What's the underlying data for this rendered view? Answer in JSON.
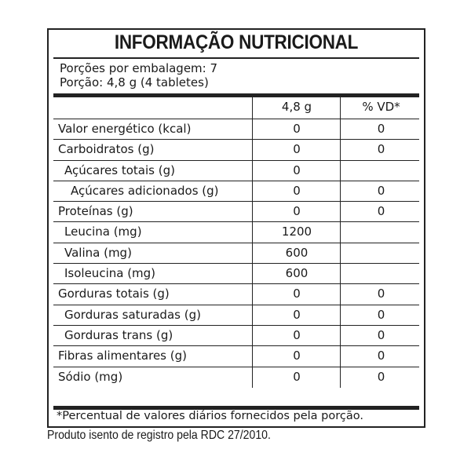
{
  "title": "INFORMAÇÃO NUTRICIONAL",
  "servings_per_package": "Porções por embalagem: 7",
  "serving_size": "Porção: 4,8 g (4 tabletes)",
  "columns": [
    "",
    "4,8 g",
    "% VD*"
  ],
  "rows": [
    {
      "label": "Valor energético (kcal)",
      "indent": 0,
      "amount": "0",
      "dv": "0"
    },
    {
      "label": "Carboidratos (g)",
      "indent": 0,
      "amount": "0",
      "dv": "0"
    },
    {
      "label": "Açúcares totais (g)",
      "indent": 1,
      "amount": "0",
      "dv": ""
    },
    {
      "label": "Açúcares adicionados (g)",
      "indent": 2,
      "amount": "0",
      "dv": "0"
    },
    {
      "label": "Proteínas (g)",
      "indent": 0,
      "amount": "0",
      "dv": "0"
    },
    {
      "label": "Leucina (mg)",
      "indent": 1,
      "amount": "1200",
      "dv": ""
    },
    {
      "label": "Valina (mg)",
      "indent": 1,
      "amount": "600",
      "dv": ""
    },
    {
      "label": "Isoleucina (mg)",
      "indent": 1,
      "amount": "600",
      "dv": ""
    },
    {
      "label": "Gorduras totais (g)",
      "indent": 0,
      "amount": "0",
      "dv": "0"
    },
    {
      "label": "Gorduras saturadas (g)",
      "indent": 1,
      "amount": "0",
      "dv": "0"
    },
    {
      "label": "Gorduras trans (g)",
      "indent": 1,
      "amount": "0",
      "dv": "0"
    },
    {
      "label": "Fibras alimentares (g)",
      "indent": 0,
      "amount": "0",
      "dv": "0"
    },
    {
      "label": "Sódio (mg)",
      "indent": 0,
      "amount": "0",
      "dv": "0"
    }
  ],
  "footnote": "*Percentual de valores diários fornecidos pela porção.",
  "registration_note": "Produto isento de registro pela RDC 27/2010."
}
